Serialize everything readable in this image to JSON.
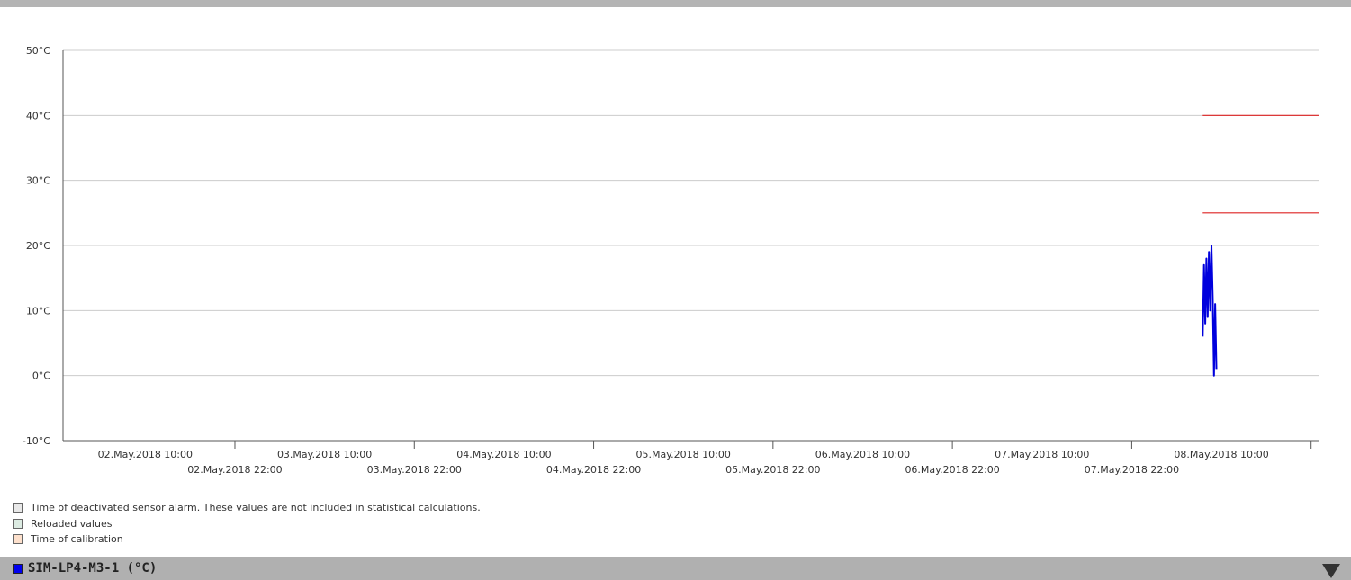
{
  "chart_data": {
    "type": "line",
    "y_unit": "°C",
    "ylim": [
      -10,
      50
    ],
    "y_ticks": [
      -10,
      0,
      10,
      20,
      30,
      40,
      50
    ],
    "x_range": [
      "2018-05-01 23:00",
      "2018-05-08 23:00"
    ],
    "x_major_labels": [
      {
        "label": "02.May.2018 10:00",
        "x": "2018-05-02 10:00"
      },
      {
        "label": "03.May.2018 10:00",
        "x": "2018-05-03 10:00"
      },
      {
        "label": "04.May.2018 10:00",
        "x": "2018-05-04 10:00"
      },
      {
        "label": "05.May.2018 10:00",
        "x": "2018-05-05 10:00"
      },
      {
        "label": "06.May.2018 10:00",
        "x": "2018-05-06 10:00"
      },
      {
        "label": "07.May.2018 10:00",
        "x": "2018-05-07 10:00"
      },
      {
        "label": "08.May.2018 10:00",
        "x": "2018-05-08 10:00"
      }
    ],
    "x_minor_labels": [
      {
        "label": "02.May.2018 22:00",
        "x": "2018-05-02 22:00"
      },
      {
        "label": "03.May.2018 22:00",
        "x": "2018-05-03 22:00"
      },
      {
        "label": "04.May.2018 22:00",
        "x": "2018-05-04 22:00"
      },
      {
        "label": "05.May.2018 22:00",
        "x": "2018-05-05 22:00"
      },
      {
        "label": "06.May.2018 22:00",
        "x": "2018-05-06 22:00"
      },
      {
        "label": "07.May.2018 22:00",
        "x": "2018-05-07 22:00"
      }
    ],
    "x_ticks": [
      "2018-05-02 22:00",
      "2018-05-03 22:00",
      "2018-05-04 22:00",
      "2018-05-05 22:00",
      "2018-05-06 22:00",
      "2018-05-07 22:00",
      "2018-05-08 22:00"
    ],
    "grid": true,
    "series": [
      {
        "color": "#0000dd",
        "points": [
          [
            "2018-05-08 07:30",
            6
          ],
          [
            "2018-05-08 07:40",
            17
          ],
          [
            "2018-05-08 07:50",
            8
          ],
          [
            "2018-05-08 08:00",
            18
          ],
          [
            "2018-05-08 08:10",
            9
          ],
          [
            "2018-05-08 08:20",
            19
          ],
          [
            "2018-05-08 08:30",
            10
          ],
          [
            "2018-05-08 08:40",
            20
          ],
          [
            "2018-05-08 08:50",
            12
          ],
          [
            "2018-05-08 09:00",
            0
          ],
          [
            "2018-05-08 09:10",
            11
          ],
          [
            "2018-05-08 09:20",
            1
          ]
        ]
      }
    ],
    "thresholds": [
      {
        "value": 40,
        "color": "#dd2222",
        "from": "2018-05-08 07:30",
        "to": "2018-05-08 23:00"
      },
      {
        "value": 25,
        "color": "#dd2222",
        "from": "2018-05-08 07:30",
        "to": "2018-05-08 23:00"
      }
    ]
  },
  "legend": [
    {
      "text": "Time of deactivated sensor alarm. These values are not included in statistical calculations.",
      "color": "#e8e8e8"
    },
    {
      "text": "Reloaded values",
      "color": "#dcebe2"
    },
    {
      "text": "Time of calibration",
      "color": "#fde0cc"
    }
  ],
  "sensor_bar": {
    "title": "SIM-LP4-M3-1 (°C)",
    "swatch_color": "#0000ee",
    "toggle_icon": "triangle-down-icon"
  }
}
